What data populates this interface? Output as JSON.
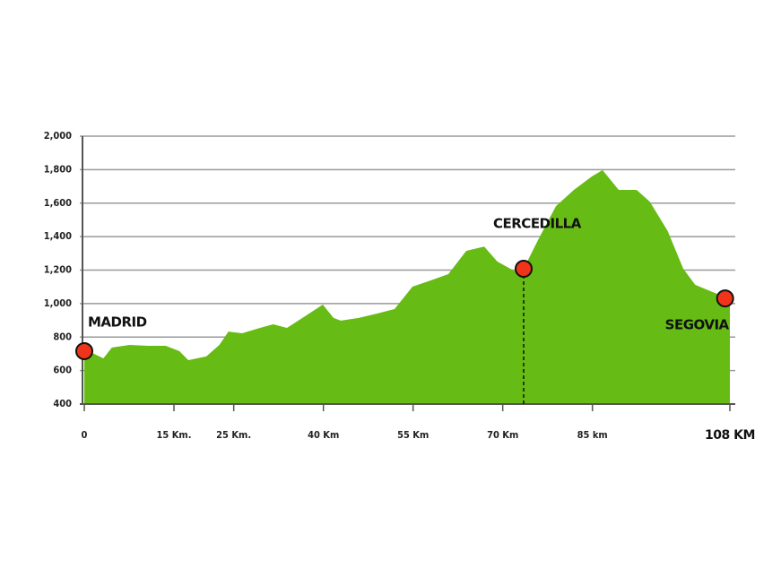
{
  "chart_data": {
    "type": "area",
    "color": "#66bb14",
    "xlim": [
      0,
      108
    ],
    "ylim": [
      400,
      2000
    ],
    "yticks": [
      {
        "value": 2000,
        "label": "2,000"
      },
      {
        "value": 1800,
        "label": "1,800"
      },
      {
        "value": 1600,
        "label": "1,600"
      },
      {
        "value": 1400,
        "label": "1,400"
      },
      {
        "value": 1200,
        "label": "1,200"
      },
      {
        "value": 1000,
        "label": "1,000"
      },
      800,
      600,
      400
    ],
    "xticks": [
      0,
      {
        "value": 15,
        "label": "15 Km."
      },
      {
        "value": 25,
        "label": "25 Km."
      },
      {
        "value": 40,
        "label": "40 Km"
      },
      {
        "value": 55,
        "label": "55 Km"
      },
      {
        "value": 70,
        "label": "70 Km"
      },
      {
        "value": 85,
        "label": "85 km"
      },
      {
        "value": 108,
        "label": "108 KM"
      }
    ],
    "grid": true,
    "x": [
      0,
      1.6,
      3.2,
      4.6,
      7.6,
      10.6,
      13.6,
      15.9,
      17.4,
      20.4,
      22.6,
      24.1,
      26.4,
      29.4,
      31.6,
      33.9,
      36.9,
      39.9,
      41.7,
      42.9,
      45.9,
      48.9,
      51.9,
      54.9,
      57.9,
      60.9,
      63.9,
      66.9,
      69.1,
      72.1,
      73.5,
      75.9,
      78.9,
      81.9,
      84.9,
      86.7,
      89.4,
      92.4,
      94.6,
      97.6,
      100.2,
      102.2,
      105.1,
      108
    ],
    "values": [
      716,
      700,
      673,
      737,
      753,
      748,
      748,
      716,
      662,
      684,
      753,
      833,
      823,
      855,
      876,
      855,
      924,
      994,
      914,
      898,
      914,
      940,
      967,
      1101,
      1138,
      1176,
      1315,
      1341,
      1251,
      1192,
      1208,
      1379,
      1582,
      1679,
      1759,
      1797,
      1679,
      1679,
      1609,
      1433,
      1208,
      1112,
      1069,
      1031
    ],
    "markers": [
      {
        "label": "MADRID",
        "x": 0,
        "y": 716
      },
      {
        "label": "CERCEDILLA",
        "x": 73.5,
        "y": 1208
      },
      {
        "label": "SEGOVIA",
        "x": 107.2,
        "y": 1031
      }
    ]
  }
}
